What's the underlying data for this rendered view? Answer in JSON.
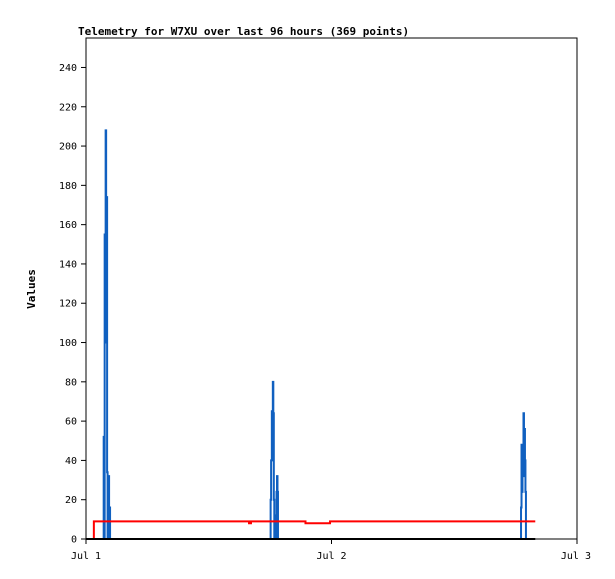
{
  "chart_data": {
    "type": "line",
    "title": "Telemetry for W7XU over last 96 hours (369 points)",
    "xlabel": "",
    "ylabel": "Values",
    "xlim": [
      "Jul 1",
      "Jul 3"
    ],
    "x_ticks": [
      "Jul 1",
      "Jul 2",
      "Jul 3"
    ],
    "ylim": [
      0,
      255
    ],
    "y_ticks": [
      0,
      20,
      40,
      60,
      80,
      100,
      120,
      140,
      160,
      180,
      200,
      220,
      240
    ],
    "grid": false,
    "legend": "none",
    "x_unit": "days since Jul 1 00:00",
    "series": [
      {
        "color": "#1060c0",
        "points": [
          [
            0.0,
            0
          ],
          [
            0.07,
            0
          ],
          [
            0.072,
            52
          ],
          [
            0.074,
            0
          ],
          [
            0.076,
            155
          ],
          [
            0.078,
            100
          ],
          [
            0.08,
            208
          ],
          [
            0.082,
            104
          ],
          [
            0.084,
            174
          ],
          [
            0.086,
            34
          ],
          [
            0.088,
            0
          ],
          [
            0.09,
            16
          ],
          [
            0.092,
            32
          ],
          [
            0.094,
            0
          ],
          [
            0.096,
            16
          ],
          [
            0.098,
            0
          ],
          [
            0.1,
            0
          ],
          [
            0.75,
            0
          ],
          [
            0.752,
            20
          ],
          [
            0.754,
            40
          ],
          [
            0.757,
            65
          ],
          [
            0.759,
            40
          ],
          [
            0.761,
            80
          ],
          [
            0.763,
            64
          ],
          [
            0.765,
            20
          ],
          [
            0.767,
            0
          ],
          [
            0.772,
            0
          ],
          [
            0.774,
            12
          ],
          [
            0.776,
            24
          ],
          [
            0.778,
            32
          ],
          [
            0.78,
            24
          ],
          [
            0.782,
            0
          ],
          [
            1.77,
            0
          ],
          [
            1.772,
            16
          ],
          [
            1.774,
            48
          ],
          [
            1.776,
            24
          ],
          [
            1.778,
            48
          ],
          [
            1.78,
            32
          ],
          [
            1.782,
            64
          ],
          [
            1.784,
            40
          ],
          [
            1.786,
            56
          ],
          [
            1.788,
            40
          ],
          [
            1.79,
            24
          ],
          [
            1.792,
            0
          ]
        ]
      },
      {
        "color": "#ff0000",
        "points": [
          [
            0.03,
            0
          ],
          [
            0.032,
            9
          ],
          [
            0.66,
            9
          ],
          [
            0.664,
            8
          ],
          [
            0.668,
            8
          ],
          [
            0.672,
            9
          ],
          [
            0.89,
            9
          ],
          [
            0.894,
            8
          ],
          [
            0.99,
            8
          ],
          [
            0.994,
            9
          ],
          [
            1.83,
            9
          ]
        ]
      },
      {
        "color": "#000000",
        "points": [
          [
            0.0,
            0
          ],
          [
            1.83,
            0
          ]
        ]
      }
    ]
  }
}
